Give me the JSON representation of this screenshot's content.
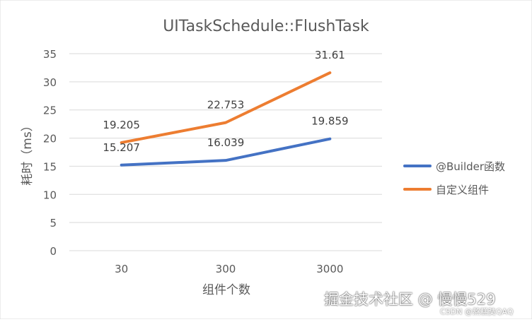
{
  "chart_data": {
    "type": "line",
    "title": "UITaskSchedule::FlushTask",
    "xlabel": "组件个数",
    "ylabel": "耗时（ms）",
    "categories": [
      "30",
      "300",
      "3000"
    ],
    "ylim": [
      0,
      35
    ],
    "yticks": [
      0,
      5,
      10,
      15,
      20,
      25,
      30,
      35
    ],
    "grid": true,
    "legend_position": "right",
    "series": [
      {
        "name": "@Builder函数",
        "values": [
          15.207,
          16.039,
          19.859
        ],
        "labels": [
          "15.207",
          "16.039",
          "19.859"
        ],
        "color": "#4472C4"
      },
      {
        "name": "自定义组件",
        "values": [
          19.205,
          22.753,
          31.61
        ],
        "labels": [
          "19.205",
          "22.753",
          "31.61"
        ],
        "color": "#ED7D31"
      }
    ]
  },
  "watermark": {
    "main": "掘金技术社区 @ 慢慢529",
    "sub": "CSDN @熬糕奘QAQ"
  }
}
